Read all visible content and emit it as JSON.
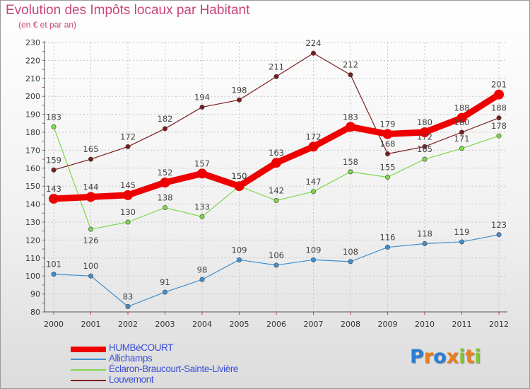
{
  "title": "Evolution des Impôts locaux par Habitant",
  "subtitle": "(en € et par an)",
  "logo": {
    "text": "Proxiti",
    "colors": [
      "#2a7fd4",
      "#ee7d1b",
      "#2a7fd4",
      "#ee7d1b",
      "#84c33a",
      "#ee7d1b",
      "#84c33a"
    ]
  },
  "chart_data": {
    "type": "line",
    "x": [
      "2000",
      "2001",
      "2002",
      "2003",
      "2004",
      "2005",
      "2006",
      "2007",
      "2008",
      "2009",
      "2010",
      "2011",
      "2012"
    ],
    "ylim": [
      80,
      230
    ],
    "yticks": [
      80,
      90,
      100,
      110,
      120,
      130,
      140,
      150,
      160,
      170,
      180,
      190,
      200,
      210,
      220,
      230
    ],
    "grid": true,
    "legend_position": "bottom-left",
    "series": [
      {
        "name": "HUMBéCOURT",
        "color": "#ee0000",
        "values": [
          143,
          144,
          145,
          152,
          157,
          150,
          163,
          172,
          183,
          179,
          180,
          188,
          201
        ]
      },
      {
        "name": "Allichamps",
        "color": "#3e8fd0",
        "values": [
          101,
          100,
          83,
          91,
          98,
          109,
          106,
          109,
          108,
          116,
          118,
          119,
          123
        ]
      },
      {
        "name": "Éclaron-Braucourt-Sainte-Livière",
        "color": "#7ed84a",
        "values": [
          183,
          126,
          130,
          138,
          133,
          150,
          142,
          147,
          158,
          155,
          165,
          171,
          178
        ]
      },
      {
        "name": "Louvemont",
        "color": "#7a1c1c",
        "values": [
          159,
          165,
          172,
          182,
          194,
          198,
          211,
          224,
          212,
          168,
          172,
          180,
          188
        ]
      }
    ]
  }
}
